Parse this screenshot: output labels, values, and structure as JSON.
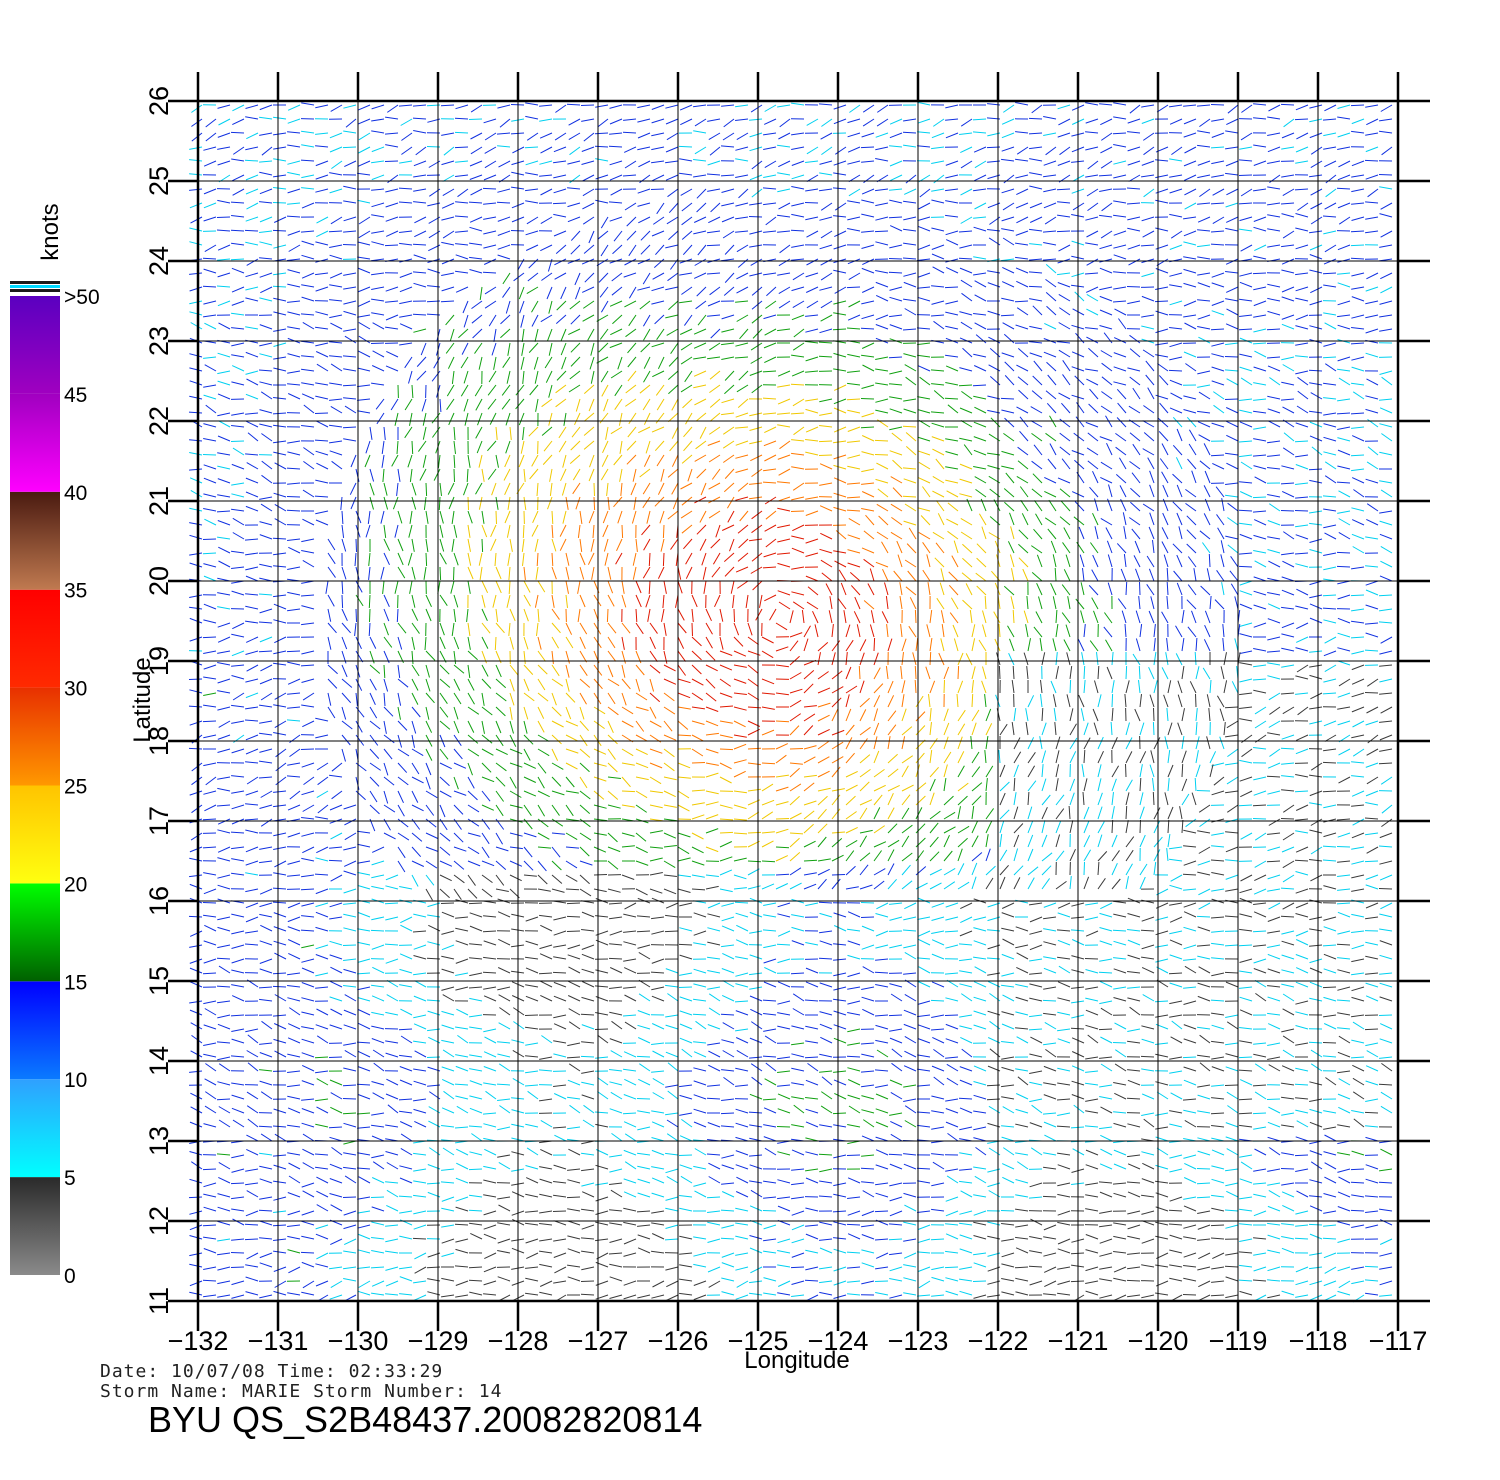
{
  "map": {
    "lon_range": [
      -132,
      -117
    ],
    "lat_range": [
      11,
      26
    ],
    "lon_ticks": [
      "−132",
      "−131",
      "−130",
      "−129",
      "−128",
      "−127",
      "−126",
      "−125",
      "−124",
      "−123",
      "−122",
      "−121",
      "−120",
      "−119",
      "−118",
      "−117"
    ],
    "lat_ticks": [
      "11",
      "12",
      "13",
      "14",
      "15",
      "16",
      "17",
      "18",
      "19",
      "20",
      "21",
      "22",
      "23",
      "24",
      "25",
      "26"
    ],
    "xlabel": "Longitude",
    "ylabel": "Latitude",
    "grid": true,
    "vector_field": "wind barbs colored by speed",
    "storm_center_approx": {
      "lon": -124.7,
      "lat": 19.5
    }
  },
  "colorbar": {
    "title": "knots",
    "labels": [
      "0",
      "5",
      "10",
      "15",
      "20",
      "25",
      "30",
      "35",
      "40",
      "45",
      ">50"
    ],
    "colors": {
      "0-5": "#444444",
      "5-10": "#00e5ff",
      "10-15": "#0050ff",
      "15-20": "#00a000",
      "20-25": "#ffd200",
      "25-30": "#ff6a00",
      "30-35": "#ff1a00",
      "35-40": "#6b3020",
      "40-50": "#c000c0",
      ">50": "#5a00c0"
    }
  },
  "info": {
    "date_line": "Date: 10/07/08   Time: 02:33:29",
    "storm_line": "Storm Name: MARIE   Storm Number: 14",
    "file_id": "BYU QS_S2B48437.20082820814"
  }
}
